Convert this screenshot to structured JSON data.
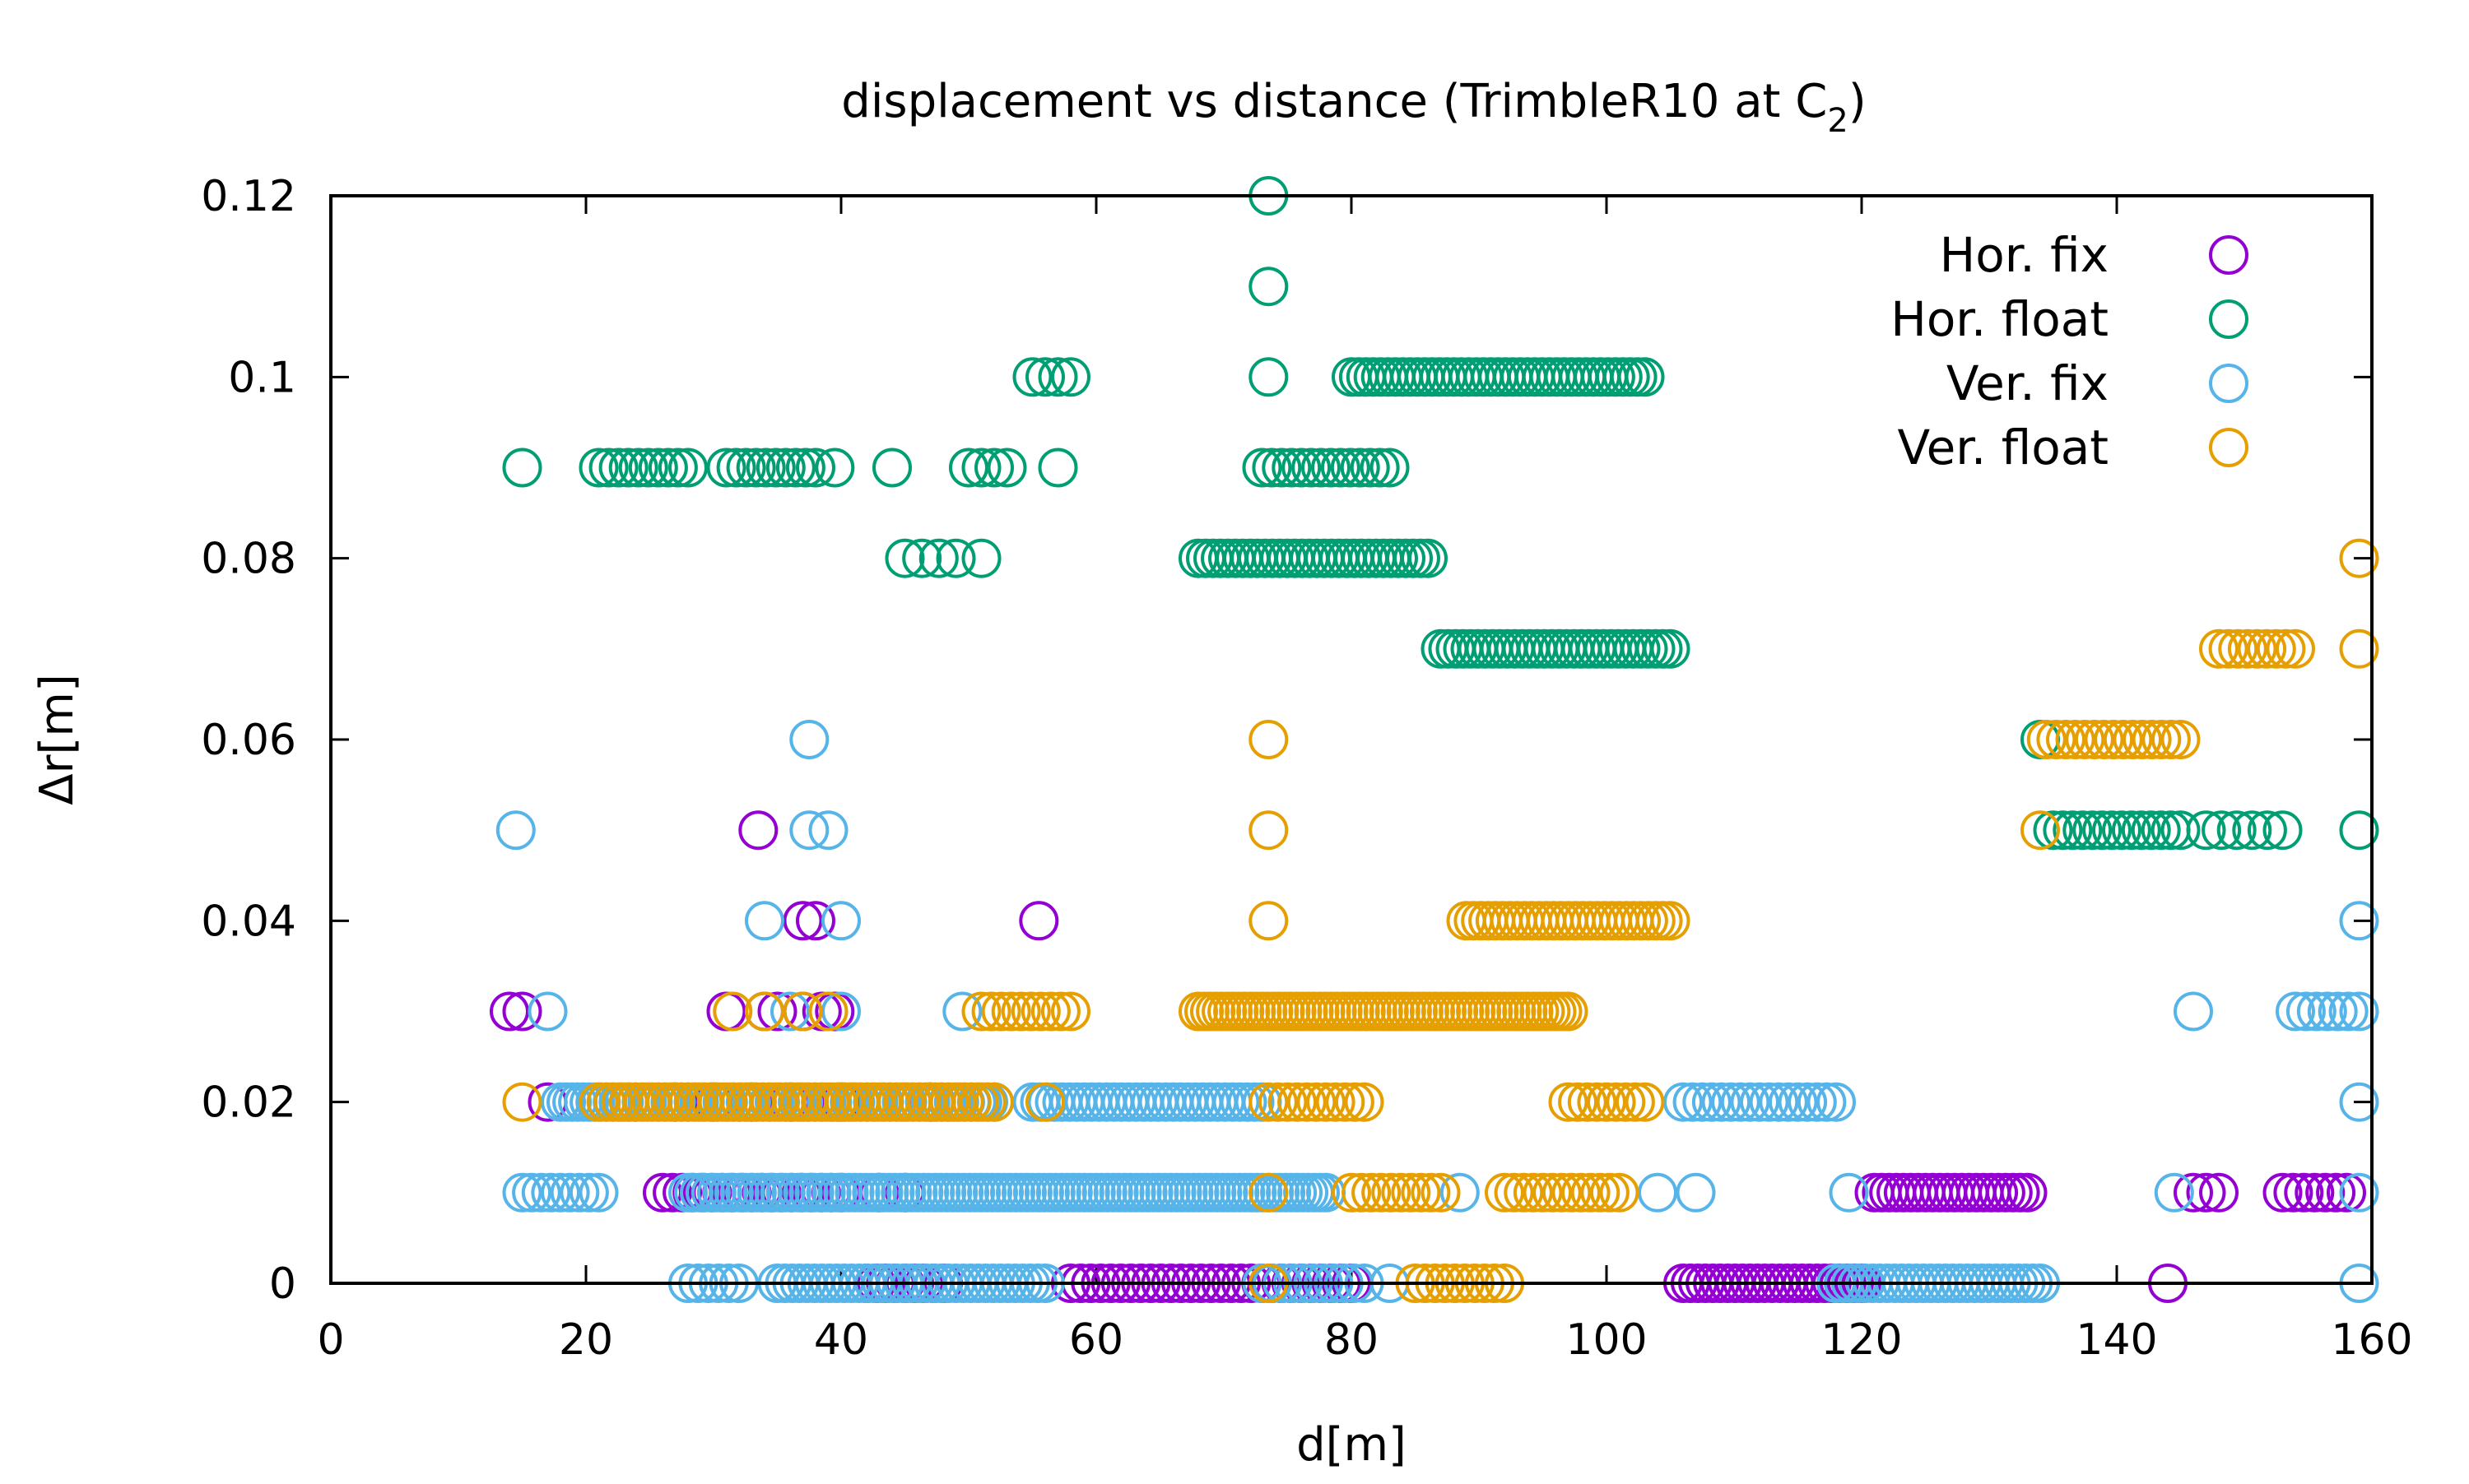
{
  "chart_data": {
    "type": "scatter",
    "title": "displacement vs distance (TrimbleR10 at C",
    "title_subscript": "2",
    "title_suffix": ")",
    "xlabel": "d[m]",
    "ylabel": "Δr[m]",
    "xlim": [
      0,
      160
    ],
    "ylim": [
      0,
      0.12
    ],
    "x_ticks": [
      "0",
      "20",
      "40",
      "60",
      "80",
      "100",
      "120",
      "140",
      "160"
    ],
    "y_ticks": [
      "0",
      "0.02",
      "0.04",
      "0.06",
      "0.08",
      "0.1",
      "0.12"
    ],
    "grid": false,
    "legend_position": "top-right",
    "marker": "open-circle",
    "series": [
      {
        "name": "Hor. fix",
        "color": "#9400d3",
        "segments": [
          [
            33.5,
            0.05
          ],
          [
            37,
            0.04
          ],
          [
            38,
            0.04
          ],
          [
            55.5,
            0.04
          ],
          [
            14,
            0.03
          ],
          [
            15,
            0.03
          ],
          [
            31,
            0.03
          ],
          [
            34,
            0.03
          ],
          [
            35,
            0.03
          ],
          [
            37,
            0.03
          ],
          [
            38.5,
            0.03
          ],
          [
            39.5,
            0.03
          ],
          [
            17,
            0.02
          ],
          [
            27,
            0.02
          ],
          [
            30,
            0.02
          ],
          [
            33,
            0.02
          ],
          [
            36,
            0.02
          ],
          [
            40,
            0.02
          ],
          [
            47,
            0.02
          ],
          [
            26,
            0.01,
            40,
            0.01,
            3
          ],
          [
            43,
            0.01
          ],
          [
            45,
            0.01
          ],
          [
            121,
            0.01,
            133,
            0.01,
            4
          ],
          [
            146,
            0.01,
            148,
            0.01,
            2
          ],
          [
            153,
            0.01,
            158,
            0.01,
            3
          ],
          [
            42,
            0,
            48,
            0,
            3
          ],
          [
            58,
            0,
            80,
            0,
            3
          ],
          [
            106,
            0,
            120,
            0,
            4
          ],
          [
            144,
            0
          ]
        ]
      },
      {
        "name": "Hor. float",
        "color": "#009e73",
        "segments": [
          [
            73.5,
            0.12
          ],
          [
            73.5,
            0.11
          ],
          [
            73.5,
            0.1
          ],
          [
            55,
            0.1,
            58,
            0.1,
            2
          ],
          [
            80,
            0.1,
            103,
            0.1,
            4
          ],
          [
            15,
            0.09
          ],
          [
            21,
            0.09,
            28,
            0.09,
            3
          ],
          [
            31,
            0.09,
            38,
            0.09,
            3
          ],
          [
            39.5,
            0.09
          ],
          [
            44,
            0.09
          ],
          [
            50,
            0.09,
            53,
            0.09,
            2
          ],
          [
            57,
            0.09
          ],
          [
            73,
            0.09,
            83,
            0.09,
            3
          ],
          [
            45,
            0.08,
            49,
            0.08,
            2
          ],
          [
            51,
            0.08
          ],
          [
            68,
            0.08,
            86,
            0.08,
            4
          ],
          [
            87,
            0.07,
            105,
            0.07,
            4
          ],
          [
            134,
            0.06
          ],
          [
            135,
            0.05,
            145,
            0.05,
            3
          ],
          [
            147,
            0.05,
            153,
            0.05,
            2
          ],
          [
            159,
            0.05
          ]
        ]
      },
      {
        "name": "Ver. fix",
        "color": "#56b4e9",
        "segments": [
          [
            37.5,
            0.06
          ],
          [
            14.5,
            0.05
          ],
          [
            37.5,
            0.05,
            39,
            0.05,
            2
          ],
          [
            34,
            0.04
          ],
          [
            40,
            0.04
          ],
          [
            159,
            0.04
          ],
          [
            17,
            0.03
          ],
          [
            36,
            0.03
          ],
          [
            40,
            0.03
          ],
          [
            49.5,
            0.03
          ],
          [
            146,
            0.03
          ],
          [
            154,
            0.03,
            159,
            0.03,
            3
          ],
          [
            18,
            0.02,
            52,
            0.02,
            5
          ],
          [
            55,
            0.02,
            73,
            0.02,
            4
          ],
          [
            106,
            0.02,
            118,
            0.02,
            3
          ],
          [
            159,
            0.02
          ],
          [
            15,
            0.01,
            21,
            0.01,
            3
          ],
          [
            28,
            0.01,
            78,
            0.01,
            5
          ],
          [
            88.5,
            0.01
          ],
          [
            104,
            0.01
          ],
          [
            107,
            0.01
          ],
          [
            119,
            0.01
          ],
          [
            144.5,
            0.01
          ],
          [
            159,
            0.01
          ],
          [
            28,
            0,
            32,
            0,
            3
          ],
          [
            35,
            0,
            56,
            0,
            4
          ],
          [
            73,
            0,
            81,
            0,
            3
          ],
          [
            83,
            0
          ],
          [
            118,
            0,
            134,
            0,
            4
          ],
          [
            159,
            0
          ]
        ]
      },
      {
        "name": "Ver. float",
        "color": "#e69f00",
        "segments": [
          [
            159,
            0.08
          ],
          [
            148,
            0.07,
            154,
            0.07,
            3
          ],
          [
            159,
            0.07
          ],
          [
            73.5,
            0.06
          ],
          [
            134.5,
            0.06,
            145,
            0.06,
            3
          ],
          [
            73.5,
            0.05
          ],
          [
            134,
            0.05
          ],
          [
            73.5,
            0.04
          ],
          [
            89,
            0.04,
            105,
            0.04,
            4
          ],
          [
            31.5,
            0.03
          ],
          [
            34,
            0.03
          ],
          [
            37,
            0.03
          ],
          [
            39,
            0.03
          ],
          [
            51,
            0.03,
            58,
            0.03,
            3
          ],
          [
            68,
            0.03,
            97,
            0.03,
            5
          ],
          [
            15,
            0.02
          ],
          [
            21,
            0.02,
            52,
            0.02,
            4
          ],
          [
            56,
            0.02
          ],
          [
            73.5,
            0.02,
            81,
            0.02,
            3
          ],
          [
            97,
            0.02,
            103,
            0.02,
            3
          ],
          [
            73.5,
            0.01
          ],
          [
            80,
            0.01,
            87,
            0.01,
            3
          ],
          [
            92,
            0.01,
            101,
            0.01,
            3
          ],
          [
            73.5,
            0
          ],
          [
            85,
            0,
            92,
            0,
            3
          ]
        ]
      }
    ]
  }
}
